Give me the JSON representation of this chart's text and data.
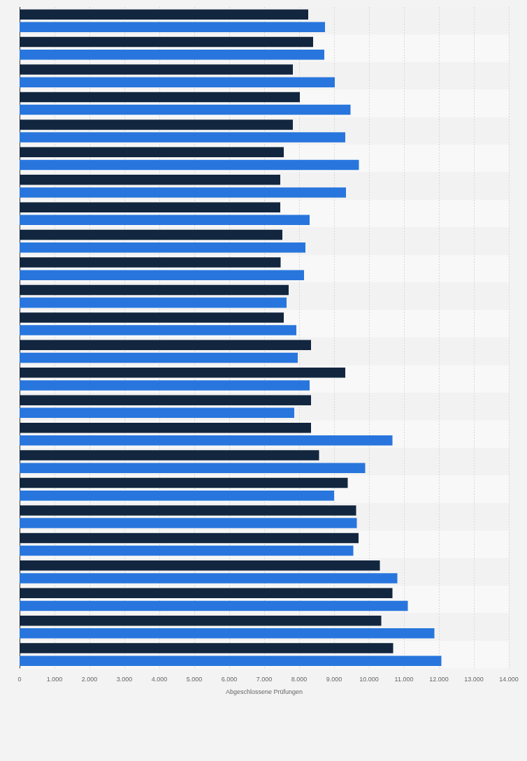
{
  "chart_data": {
    "type": "bar",
    "orientation": "horizontal",
    "xlabel": "Abgeschlossene Prüfungen",
    "categories": [
      null,
      null,
      null,
      null,
      null,
      null,
      null,
      null,
      null,
      null,
      null,
      null,
      null,
      null,
      null,
      null,
      null,
      null,
      null,
      null,
      null,
      null,
      null,
      null
    ],
    "series": [
      {
        "color": "#12263f",
        "values": [
          8260,
          8400,
          7820,
          8020,
          7820,
          7560,
          7460,
          7460,
          7520,
          7470,
          7700,
          7560,
          8340,
          9320,
          8340,
          8340,
          8570,
          9390,
          9630,
          9700,
          10310,
          10670,
          10350,
          10690
        ]
      },
      {
        "color": "#2876dd",
        "values": [
          8740,
          8720,
          9020,
          9470,
          9320,
          9710,
          9340,
          8300,
          8180,
          8140,
          7640,
          7920,
          7960,
          8300,
          7860,
          10670,
          9890,
          9000,
          9650,
          9550,
          10810,
          11110,
          11870,
          12070
        ]
      }
    ],
    "xlim": [
      0,
      14000
    ],
    "xticks": [
      0,
      {
        "value": 1000,
        "label": "1.000"
      },
      {
        "value": 2000,
        "label": "2.000"
      },
      {
        "value": 3000,
        "label": "3.000"
      },
      {
        "value": 4000,
        "label": "4.000"
      },
      {
        "value": 5000,
        "label": "5.000"
      },
      {
        "value": 6000,
        "label": "6.000"
      },
      {
        "value": 7000,
        "label": "7.000"
      },
      {
        "value": 8000,
        "label": "8.000"
      },
      {
        "value": 9000,
        "label": "9.000"
      },
      {
        "value": 10000,
        "label": "10.000"
      },
      {
        "value": 11000,
        "label": "11.000"
      },
      {
        "value": 12000,
        "label": "12.000"
      },
      {
        "value": 13000,
        "label": "13.000"
      },
      {
        "value": 14000,
        "label": "14.000"
      }
    ],
    "grid": "x",
    "legend": false
  }
}
